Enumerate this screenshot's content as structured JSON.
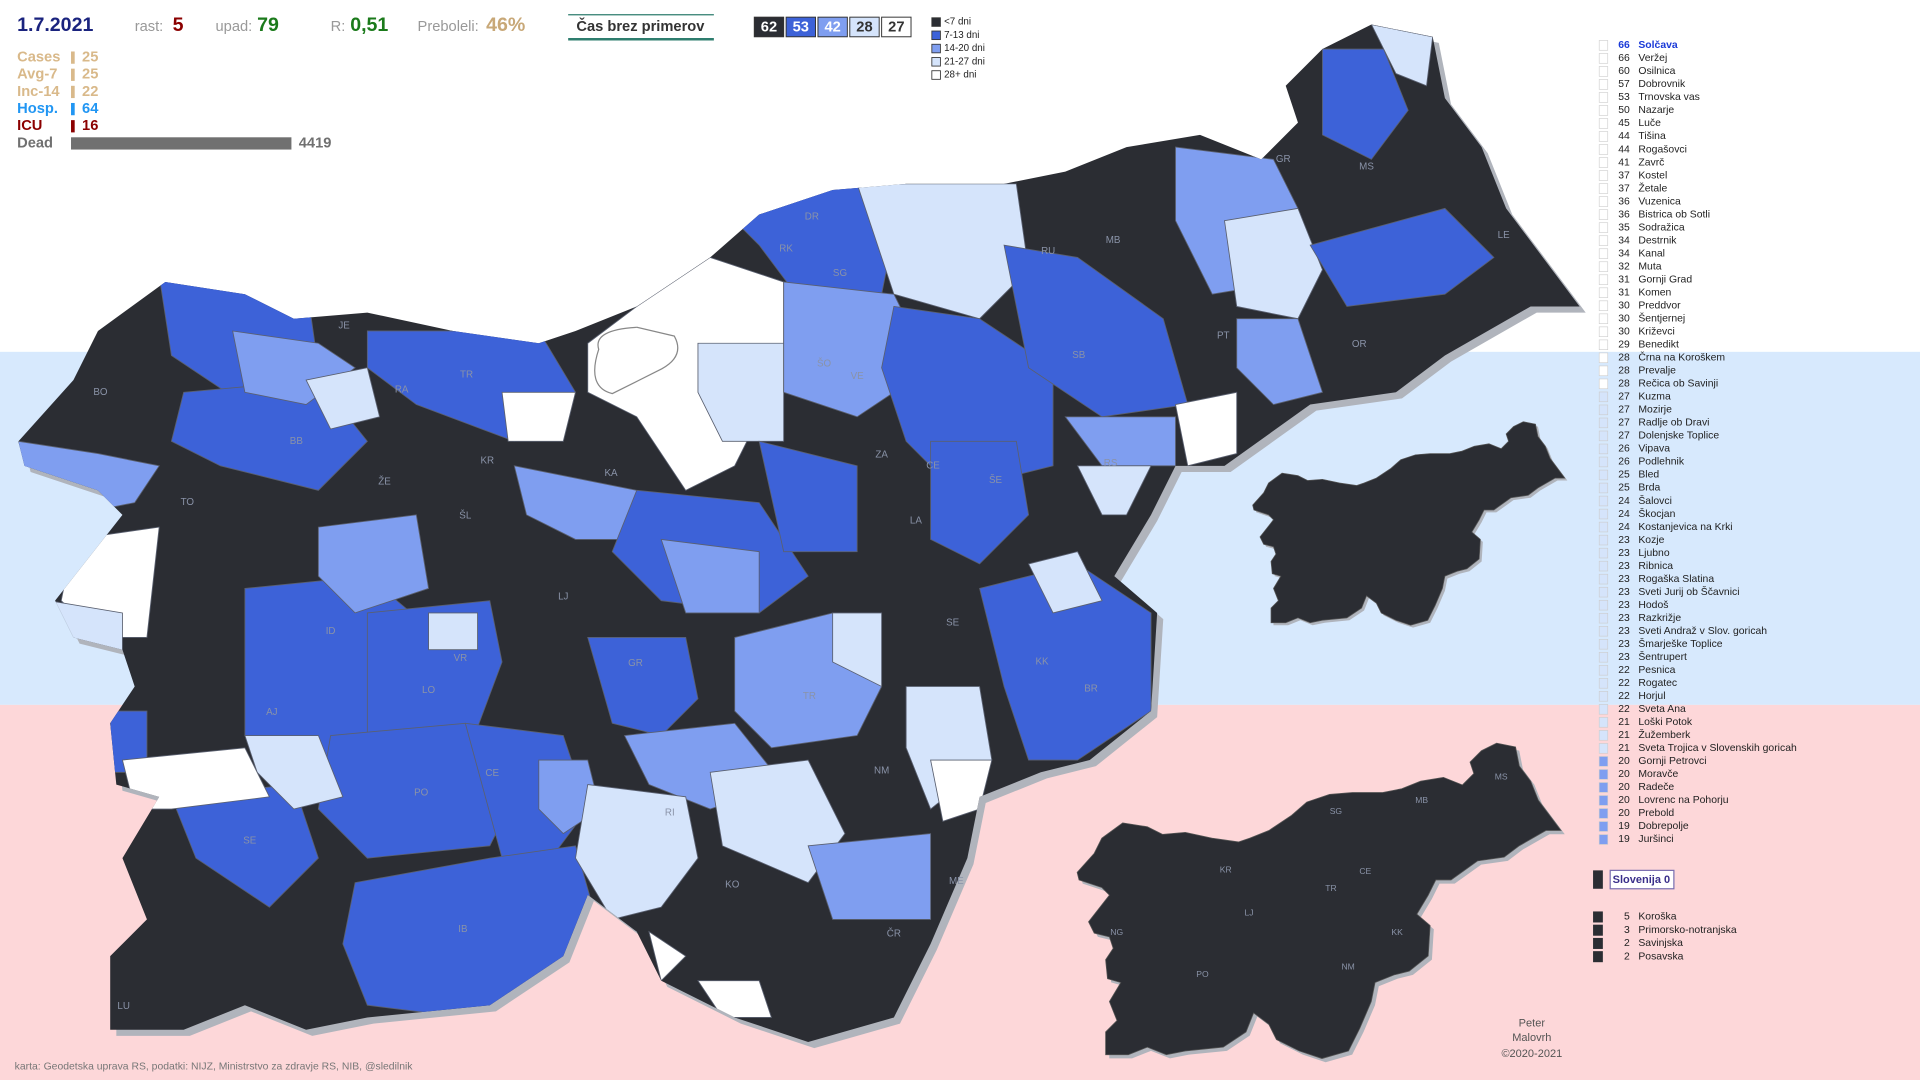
{
  "header": {
    "date": "1.7.2021",
    "growth": {
      "label": "rast:",
      "value": 5
    },
    "decline": {
      "label": "upad:",
      "value": 79
    },
    "r": {
      "label": "R:",
      "value": "0,51"
    },
    "recovered": {
      "label": "Preboleli:",
      "value": 46,
      "value_label": "46%"
    },
    "period_title": "Čas brez primerov",
    "period_counts": [
      {
        "value": 62,
        "color": "#2b2d33"
      },
      {
        "value": 53,
        "color": "#3d62d8"
      },
      {
        "value": 42,
        "color": "#7f9ef0"
      },
      {
        "value": 28,
        "color": "#d5e4fb"
      },
      {
        "value": 27,
        "color": "#ffffff"
      }
    ]
  },
  "legend": [
    {
      "label": "<7 dni",
      "color": "#2b2d33"
    },
    {
      "label": "7-13 dni",
      "color": "#3d62d8"
    },
    {
      "label": "14-20 dni",
      "color": "#7f9ef0"
    },
    {
      "label": "21-27 dni",
      "color": "#d5e4fb"
    },
    {
      "label": "28+ dni",
      "color": "#ffffff"
    }
  ],
  "stats": [
    {
      "label": "Cases",
      "value": 25,
      "color": "#d9b98a"
    },
    {
      "label": "Avg-7",
      "value": 25,
      "color": "#d9b98a"
    },
    {
      "label": "Inc-14",
      "value": 22,
      "color": "#d9b98a"
    },
    {
      "label": "Hosp.",
      "value": 64,
      "color": "#2196f3"
    },
    {
      "label": "ICU",
      "value": 16,
      "color": "#8b0000"
    },
    {
      "label": "Dead",
      "value": 4419,
      "color": "#707070"
    }
  ],
  "municipalities": [
    {
      "days": 66,
      "name": "Solčava",
      "color": "#ffffff"
    },
    {
      "days": 66,
      "name": "Veržej",
      "color": "#ffffff"
    },
    {
      "days": 60,
      "name": "Osilnica",
      "color": "#ffffff"
    },
    {
      "days": 57,
      "name": "Dobrovnik",
      "color": "#ffffff"
    },
    {
      "days": 53,
      "name": "Trnovska vas",
      "color": "#ffffff"
    },
    {
      "days": 50,
      "name": "Nazarje",
      "color": "#ffffff"
    },
    {
      "days": 45,
      "name": "Luče",
      "color": "#ffffff"
    },
    {
      "days": 44,
      "name": "Tišina",
      "color": "#ffffff"
    },
    {
      "days": 44,
      "name": "Rogašovci",
      "color": "#ffffff"
    },
    {
      "days": 41,
      "name": "Zavrč",
      "color": "#ffffff"
    },
    {
      "days": 37,
      "name": "Kostel",
      "color": "#ffffff"
    },
    {
      "days": 37,
      "name": "Žetale",
      "color": "#ffffff"
    },
    {
      "days": 36,
      "name": "Vuzenica",
      "color": "#ffffff"
    },
    {
      "days": 36,
      "name": "Bistrica ob Sotli",
      "color": "#ffffff"
    },
    {
      "days": 35,
      "name": "Sodražica",
      "color": "#ffffff"
    },
    {
      "days": 34,
      "name": "Destrnik",
      "color": "#ffffff"
    },
    {
      "days": 34,
      "name": "Kanal",
      "color": "#ffffff"
    },
    {
      "days": 32,
      "name": "Muta",
      "color": "#ffffff"
    },
    {
      "days": 31,
      "name": "Gornji Grad",
      "color": "#ffffff"
    },
    {
      "days": 31,
      "name": "Komen",
      "color": "#ffffff"
    },
    {
      "days": 30,
      "name": "Preddvor",
      "color": "#ffffff"
    },
    {
      "days": 30,
      "name": "Šentjernej",
      "color": "#ffffff"
    },
    {
      "days": 30,
      "name": "Križevci",
      "color": "#ffffff"
    },
    {
      "days": 29,
      "name": "Benedikt",
      "color": "#ffffff"
    },
    {
      "days": 28,
      "name": "Črna na Koroškem",
      "color": "#ffffff"
    },
    {
      "days": 28,
      "name": "Prevalje",
      "color": "#ffffff"
    },
    {
      "days": 28,
      "name": "Rečica ob Savinji",
      "color": "#ffffff"
    },
    {
      "days": 27,
      "name": "Kuzma",
      "color": "#d5e4fb"
    },
    {
      "days": 27,
      "name": "Mozirje",
      "color": "#d5e4fb"
    },
    {
      "days": 27,
      "name": "Radlje ob Dravi",
      "color": "#d5e4fb"
    },
    {
      "days": 27,
      "name": "Dolenjske Toplice",
      "color": "#d5e4fb"
    },
    {
      "days": 26,
      "name": "Vipava",
      "color": "#d5e4fb"
    },
    {
      "days": 26,
      "name": "Podlehnik",
      "color": "#d5e4fb"
    },
    {
      "days": 25,
      "name": "Bled",
      "color": "#d5e4fb"
    },
    {
      "days": 25,
      "name": "Brda",
      "color": "#d5e4fb"
    },
    {
      "days": 24,
      "name": "Šalovci",
      "color": "#d5e4fb"
    },
    {
      "days": 24,
      "name": "Škocjan",
      "color": "#d5e4fb"
    },
    {
      "days": 24,
      "name": "Kostanjevica na Krki",
      "color": "#d5e4fb"
    },
    {
      "days": 23,
      "name": "Kozje",
      "color": "#d5e4fb"
    },
    {
      "days": 23,
      "name": "Ljubno",
      "color": "#d5e4fb"
    },
    {
      "days": 23,
      "name": "Ribnica",
      "color": "#d5e4fb"
    },
    {
      "days": 23,
      "name": "Rogaška Slatina",
      "color": "#d5e4fb"
    },
    {
      "days": 23,
      "name": "Sveti Jurij ob Ščavnici",
      "color": "#d5e4fb"
    },
    {
      "days": 23,
      "name": "Hodoš",
      "color": "#d5e4fb"
    },
    {
      "days": 23,
      "name": "Razkrižje",
      "color": "#d5e4fb"
    },
    {
      "days": 23,
      "name": "Sveti Andraž v Slov. goricah",
      "color": "#d5e4fb"
    },
    {
      "days": 23,
      "name": "Šmarješke Toplice",
      "color": "#d5e4fb"
    },
    {
      "days": 23,
      "name": "Šentrupert",
      "color": "#d5e4fb"
    },
    {
      "days": 22,
      "name": "Pesnica",
      "color": "#d5e4fb"
    },
    {
      "days": 22,
      "name": "Rogatec",
      "color": "#d5e4fb"
    },
    {
      "days": 22,
      "name": "Horjul",
      "color": "#d5e4fb"
    },
    {
      "days": 22,
      "name": "Sveta Ana",
      "color": "#d5e4fb"
    },
    {
      "days": 21,
      "name": "Loški Potok",
      "color": "#d5e4fb"
    },
    {
      "days": 21,
      "name": "Žužemberk",
      "color": "#d5e4fb"
    },
    {
      "days": 21,
      "name": "Sveta Trojica v Slovenskih goricah",
      "color": "#d5e4fb"
    },
    {
      "days": 20,
      "name": "Gornji Petrovci",
      "color": "#7f9ef0"
    },
    {
      "days": 20,
      "name": "Moravče",
      "color": "#7f9ef0"
    },
    {
      "days": 20,
      "name": "Radeče",
      "color": "#7f9ef0"
    },
    {
      "days": 20,
      "name": "Lovrenc na Pohorju",
      "color": "#7f9ef0"
    },
    {
      "days": 20,
      "name": "Prebold",
      "color": "#7f9ef0"
    },
    {
      "days": 19,
      "name": "Dobrepolje",
      "color": "#7f9ef0"
    },
    {
      "days": 19,
      "name": "Juršinci",
      "color": "#7f9ef0"
    }
  ],
  "country": {
    "name": "Slovenija",
    "days": 0
  },
  "regions": [
    {
      "days": 5,
      "name": "Koroška"
    },
    {
      "days": 3,
      "name": "Primorsko-notranjska"
    },
    {
      "days": 2,
      "name": "Savinjska"
    },
    {
      "days": 2,
      "name": "Posavska"
    }
  ],
  "map_labels": [
    "BO",
    "TO",
    "BB",
    "KR",
    "ŠL",
    "ŽE",
    "LJ",
    "VR",
    "LO",
    "ID",
    "AJ",
    "SE",
    "PO",
    "CE",
    "IB",
    "KO",
    "ČR",
    "NM",
    "ME",
    "TR",
    "GR",
    "LA",
    "SE",
    "KK",
    "BR",
    "ŠE",
    "CE",
    "ZA",
    "VE",
    "ŠO",
    "SB",
    "MB",
    "RU",
    "MS",
    "LE",
    "OR",
    "PT",
    "RS",
    "GR",
    "DR",
    "RK",
    "SG",
    "JE",
    "RA",
    "TR",
    "KA",
    "RI",
    "LU"
  ],
  "small_map_labels": [
    "KR",
    "LJ",
    "TR",
    "CE",
    "SG",
    "MB",
    "MS",
    "KK",
    "NM",
    "PO",
    "NG"
  ],
  "credit": "karta: Geodetska uprava RS,  podatki: NIJZ, Ministrstvo za zdravje RS, NIB, @sledilnik",
  "author": [
    "Peter",
    "Malovrh",
    "©2020-2021"
  ]
}
